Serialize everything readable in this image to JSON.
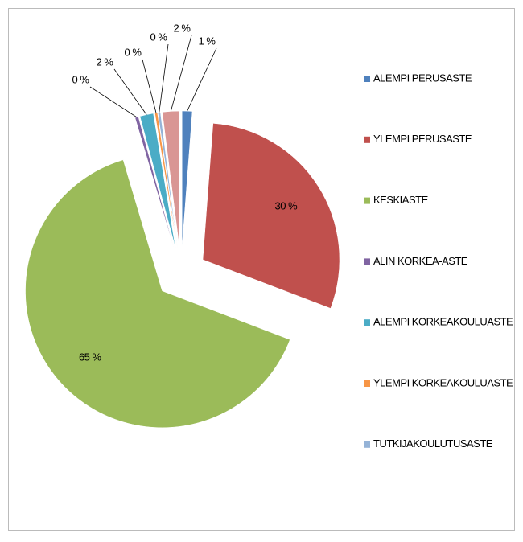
{
  "chart_data": {
    "type": "pie",
    "categories": [
      "ALEMPI PERUSASTE",
      "YLEMPI PERUSASTE",
      "KESKIASTE",
      "ALIN KORKEA-ASTE",
      "ALEMPI KORKEAKOULUASTE",
      "YLEMPI KORKEAKOULUASTE",
      "TUTKIJAKOULUTUSASTE",
      null
    ],
    "values": [
      1.2,
      29.6,
      64.6,
      0.4,
      1.6,
      0.3,
      0.3,
      2.0
    ],
    "value_labels": [
      "1 %",
      "30 %",
      "65 %",
      "0 %",
      "2 %",
      "0 %",
      "0 %",
      "2 %"
    ],
    "colors": [
      "#4f81bd",
      "#c0504d",
      "#9bbb59",
      "#8064a2",
      "#4bacc6",
      "#f79646",
      "#95b3d7",
      "#d99694"
    ],
    "legend": "right"
  }
}
